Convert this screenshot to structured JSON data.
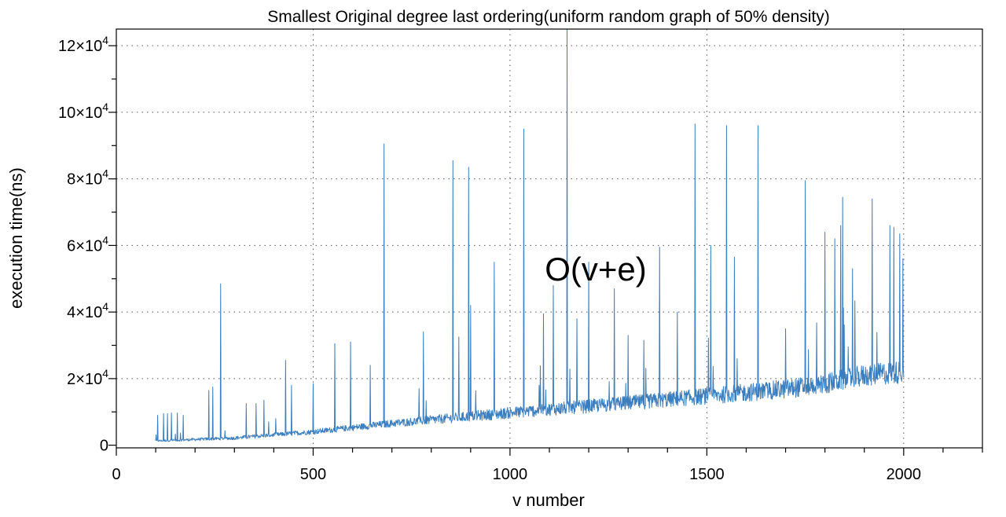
{
  "chart_data": {
    "type": "line",
    "title": "Smallest Original degree last ordering(uniform random graph of 50% density)",
    "xlabel": "v number",
    "ylabel": "execution time(ns)",
    "annotation": "O(v+e)",
    "xlim": [
      0,
      2200
    ],
    "ylim": [
      -800,
      125000
    ],
    "x_ticks": [
      0,
      500,
      1000,
      1500,
      2000
    ],
    "x_tick_labels": [
      "0",
      "500",
      "1000",
      "1500",
      "2000"
    ],
    "y_ticks": [
      0,
      20000,
      40000,
      60000,
      80000,
      100000,
      120000
    ],
    "y_tick_labels": [
      {
        "mant": "0",
        "exp": ""
      },
      {
        "mant": "2×10",
        "exp": "4"
      },
      {
        "mant": "4×10",
        "exp": "4"
      },
      {
        "mant": "6×10",
        "exp": "4"
      },
      {
        "mant": "8×10",
        "exp": "4"
      },
      {
        "mant": "10×10",
        "exp": "4"
      },
      {
        "mant": "12×10",
        "exp": "4"
      }
    ],
    "grid": true,
    "line_color": "#3a7ebf",
    "series": [
      {
        "x_start": 100,
        "x_end": 2000,
        "baseline": [
          [
            100,
            1200
          ],
          [
            300,
            2000
          ],
          [
            500,
            3800
          ],
          [
            700,
            6200
          ],
          [
            900,
            8200
          ],
          [
            1100,
            10200
          ],
          [
            1300,
            12000
          ],
          [
            1500,
            14000
          ],
          [
            1700,
            16000
          ],
          [
            1800,
            17500
          ],
          [
            1900,
            20000
          ],
          [
            2000,
            21000
          ]
        ],
        "noise_amplitude": [
          [
            100,
            600
          ],
          [
            500,
            1500
          ],
          [
            1000,
            3500
          ],
          [
            1500,
            5000
          ],
          [
            2000,
            7000
          ]
        ],
        "spikes": [
          [
            105,
            9000
          ],
          [
            120,
            9500
          ],
          [
            130,
            9500
          ],
          [
            140,
            9700
          ],
          [
            155,
            9700
          ],
          [
            170,
            9000
          ],
          [
            235,
            16500
          ],
          [
            245,
            17500
          ],
          [
            265,
            48500
          ],
          [
            330,
            12500
          ],
          [
            355,
            12500
          ],
          [
            375,
            13500
          ],
          [
            430,
            25500
          ],
          [
            445,
            18000
          ],
          [
            500,
            18500
          ],
          [
            555,
            30500
          ],
          [
            595,
            31000
          ],
          [
            645,
            24000
          ],
          [
            680,
            90500
          ],
          [
            780,
            34000
          ],
          [
            855,
            85500
          ],
          [
            870,
            32500
          ],
          [
            895,
            83500
          ],
          [
            900,
            42000
          ],
          [
            960,
            55000
          ],
          [
            1035,
            95000
          ],
          [
            1085,
            39500
          ],
          [
            1110,
            48000
          ],
          [
            1145,
            125000
          ],
          [
            1170,
            38000
          ],
          [
            1200,
            55000
          ],
          [
            1265,
            47000
          ],
          [
            1300,
            33000
          ],
          [
            1340,
            31500
          ],
          [
            1380,
            59500
          ],
          [
            1425,
            40000
          ],
          [
            1470,
            96500
          ],
          [
            1510,
            60000
          ],
          [
            1550,
            96000
          ],
          [
            1570,
            56500
          ],
          [
            1630,
            96000
          ],
          [
            1700,
            35000
          ],
          [
            1750,
            79500
          ],
          [
            1800,
            64000
          ],
          [
            1825,
            62000
          ],
          [
            1840,
            66000
          ],
          [
            1845,
            74500
          ],
          [
            1870,
            53000
          ],
          [
            1920,
            74000
          ],
          [
            1965,
            66000
          ],
          [
            1975,
            65500
          ],
          [
            1990,
            63500
          ],
          [
            1998,
            56000
          ]
        ]
      }
    ]
  }
}
